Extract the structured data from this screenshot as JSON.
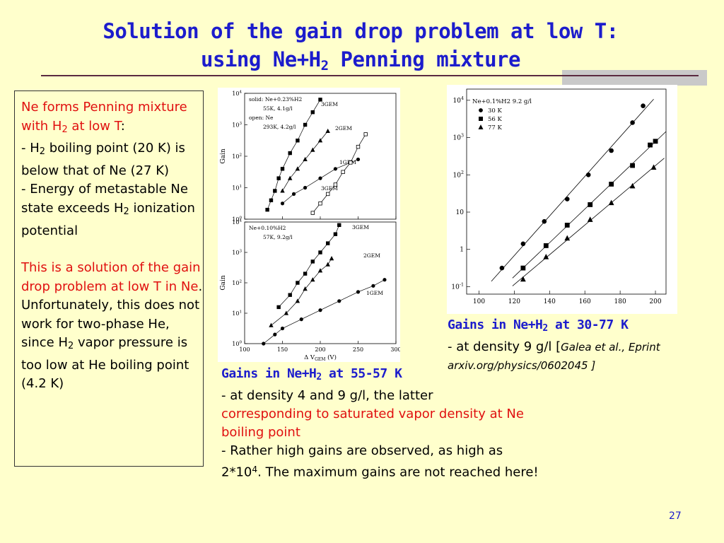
{
  "slide": {
    "title_line1": "Solution of the gain drop problem at low T:",
    "title_line2_pre": "using Ne+H",
    "title_line2_sub": "2",
    "title_line2_post": " Penning mixture",
    "page_number": "27"
  },
  "left_box": {
    "p1_red_a": "Ne forms Penning mixture with H",
    "p1_red_sub": "2",
    "p1_red_b": " at low T",
    "p1_black": ":",
    "b1_a": "- H",
    "b1_sub": "2",
    "b1_b": " boiling point (20 K) is below that of Ne (27 K)",
    "b2_a": "- Energy of metastable Ne state exceeds H",
    "b2_sub": "2",
    "b2_b": " ionization potential",
    "p2_red": "This is a solution of the gain drop problem at low T in Ne",
    "p2_black_a": ". Unfortunately, this does not work for two-phase He, since H",
    "p2_sub": "2",
    "p2_black_b": " vapor pressure is too low at He boiling point (4.2 K)"
  },
  "caption_left": {
    "head_a": "Gains in Ne+H",
    "head_sub": "2",
    "head_b": " at 55-57 K",
    "l1": "- at density 4 and 9 g/l, the latter",
    "l2_red": "corresponding to saturated vapor density at Ne boiling point",
    "l3_a": "- Rather high gains are observed, as high as 2*10",
    "l3_sup": "4",
    "l3_b": ". The maximum gains are not reached here!"
  },
  "caption_right": {
    "head_a": "Gains in Ne+H",
    "head_sub": "2",
    "head_b": " at 30-77 K",
    "l1_a": "- at density 9 g/l [",
    "l1_it": "Galea et al., Eprint arxiv.org/physics/0602045",
    "l1_b": " ]"
  },
  "chart_data": [
    {
      "type": "line",
      "panel": "upper-left",
      "ylabel": "Gain",
      "yscale": "log",
      "xlim": [
        100,
        300
      ],
      "ylim_exp": [
        0,
        4
      ],
      "ytick_labels": [
        "10^0",
        "10^1",
        "10^2",
        "10^3",
        "10^4"
      ],
      "legend_lines": [
        "solid: Ne+0.23%H2",
        "55K, 4.1g/l",
        "open: Ne",
        "293K, 4.2g/l"
      ],
      "series": [
        {
          "name": "3GEM",
          "marker": "filled-square",
          "x": [
            130,
            135,
            140,
            145,
            150,
            160,
            170,
            180,
            190,
            200
          ],
          "log10_y": [
            0.3,
            0.6,
            0.9,
            1.3,
            1.6,
            2.1,
            2.5,
            3.0,
            3.4,
            3.8
          ]
        },
        {
          "name": "2GEM",
          "marker": "filled-triangle",
          "x": [
            150,
            160,
            170,
            180,
            190,
            200,
            210
          ],
          "log10_y": [
            0.9,
            1.3,
            1.6,
            1.9,
            2.2,
            2.5,
            2.8
          ]
        },
        {
          "name": "1GEM",
          "marker": "filled-circle",
          "x": [
            150,
            165,
            180,
            200,
            220,
            240,
            250
          ],
          "log10_y": [
            0.5,
            0.8,
            1.0,
            1.3,
            1.6,
            1.8,
            1.9
          ]
        },
        {
          "name": "3GEM",
          "marker": "open-square",
          "x": [
            190,
            200,
            210,
            220,
            230,
            240,
            250,
            260
          ],
          "log10_y": [
            0.2,
            0.5,
            0.8,
            1.1,
            1.5,
            1.8,
            2.3,
            2.7
          ]
        }
      ]
    },
    {
      "type": "line",
      "panel": "lower-left",
      "ylabel": "Gain",
      "xlabel": "Δ V_GEM (V)",
      "yscale": "log",
      "xlim": [
        100,
        300
      ],
      "ylim_exp": [
        0,
        4
      ],
      "ytick_labels": [
        "10^0",
        "10^1",
        "10^2",
        "10^3",
        "10^4"
      ],
      "xtick_labels": [
        "100",
        "150",
        "200",
        "250",
        "300"
      ],
      "legend_lines": [
        "Ne+0.10%H2",
        "57K, 9.2g/l"
      ],
      "series": [
        {
          "name": "3GEM",
          "marker": "filled-square",
          "x": [
            145,
            160,
            170,
            180,
            190,
            200,
            210,
            220,
            225
          ],
          "log10_y": [
            1.2,
            1.6,
            2.0,
            2.3,
            2.7,
            3.0,
            3.3,
            3.6,
            3.9
          ]
        },
        {
          "name": "2GEM",
          "marker": "filled-triangle",
          "x": [
            135,
            155,
            170,
            180,
            190,
            200,
            210,
            215
          ],
          "log10_y": [
            0.6,
            1.0,
            1.4,
            1.8,
            2.1,
            2.4,
            2.6,
            2.8
          ]
        },
        {
          "name": "1GEM",
          "marker": "filled-circle",
          "x": [
            125,
            140,
            150,
            175,
            200,
            225,
            250,
            270,
            285
          ],
          "log10_y": [
            0.0,
            0.3,
            0.5,
            0.8,
            1.1,
            1.4,
            1.7,
            1.9,
            2.1
          ]
        }
      ]
    },
    {
      "type": "scatter",
      "panel": "right",
      "yscale": "log",
      "xlim": [
        100,
        200
      ],
      "ylim_exp": [
        -1,
        4
      ],
      "ytick_labels": [
        "10^-1",
        "1",
        "10",
        "10^2",
        "10^3",
        "10^4"
      ],
      "xtick_labels": [
        "100",
        "120",
        "140",
        "160",
        "180",
        "200"
      ],
      "legend_title": "Ne+0.1%H2 9.2 g/l",
      "series": [
        {
          "name": "30 K",
          "marker": "filled-circle",
          "x": [
            113,
            125,
            137,
            150,
            162,
            175,
            187,
            193
          ],
          "log10_y": [
            -0.5,
            0.15,
            0.75,
            1.35,
            2.0,
            2.65,
            3.4,
            3.85
          ]
        },
        {
          "name": "56 K",
          "marker": "filled-square",
          "x": [
            125,
            138,
            150,
            163,
            175,
            187,
            197,
            200
          ],
          "log10_y": [
            -0.5,
            0.1,
            0.65,
            1.2,
            1.75,
            2.25,
            2.8,
            2.9
          ]
        },
        {
          "name": "77 K",
          "marker": "filled-triangle",
          "x": [
            125,
            138,
            150,
            163,
            175,
            187,
            199
          ],
          "log10_y": [
            -0.8,
            -0.2,
            0.3,
            0.8,
            1.25,
            1.7,
            2.2
          ]
        }
      ]
    }
  ]
}
